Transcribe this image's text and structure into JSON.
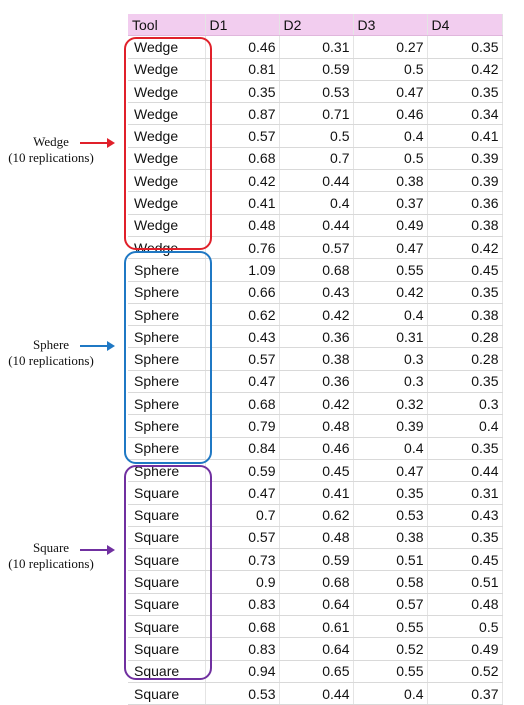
{
  "table": {
    "headers": [
      "Tool",
      "D1",
      "D2",
      "D3",
      "D4"
    ],
    "rows": [
      [
        "Wedge",
        "0.46",
        "0.31",
        "0.27",
        "0.35"
      ],
      [
        "Wedge",
        "0.81",
        "0.59",
        "0.5",
        "0.42"
      ],
      [
        "Wedge",
        "0.35",
        "0.53",
        "0.47",
        "0.35"
      ],
      [
        "Wedge",
        "0.87",
        "0.71",
        "0.46",
        "0.34"
      ],
      [
        "Wedge",
        "0.57",
        "0.5",
        "0.4",
        "0.41"
      ],
      [
        "Wedge",
        "0.68",
        "0.7",
        "0.5",
        "0.39"
      ],
      [
        "Wedge",
        "0.42",
        "0.44",
        "0.38",
        "0.39"
      ],
      [
        "Wedge",
        "0.41",
        "0.4",
        "0.37",
        "0.36"
      ],
      [
        "Wedge",
        "0.48",
        "0.44",
        "0.49",
        "0.38"
      ],
      [
        "Wedge",
        "0.76",
        "0.57",
        "0.47",
        "0.42"
      ],
      [
        "Sphere",
        "1.09",
        "0.68",
        "0.55",
        "0.45"
      ],
      [
        "Sphere",
        "0.66",
        "0.43",
        "0.42",
        "0.35"
      ],
      [
        "Sphere",
        "0.62",
        "0.42",
        "0.4",
        "0.38"
      ],
      [
        "Sphere",
        "0.43",
        "0.36",
        "0.31",
        "0.28"
      ],
      [
        "Sphere",
        "0.57",
        "0.38",
        "0.3",
        "0.28"
      ],
      [
        "Sphere",
        "0.47",
        "0.36",
        "0.3",
        "0.35"
      ],
      [
        "Sphere",
        "0.68",
        "0.42",
        "0.32",
        "0.3"
      ],
      [
        "Sphere",
        "0.79",
        "0.48",
        "0.39",
        "0.4"
      ],
      [
        "Sphere",
        "0.84",
        "0.46",
        "0.4",
        "0.35"
      ],
      [
        "Sphere",
        "0.59",
        "0.45",
        "0.47",
        "0.44"
      ],
      [
        "Square",
        "0.47",
        "0.41",
        "0.35",
        "0.31"
      ],
      [
        "Square",
        "0.7",
        "0.62",
        "0.53",
        "0.43"
      ],
      [
        "Square",
        "0.57",
        "0.48",
        "0.38",
        "0.35"
      ],
      [
        "Square",
        "0.73",
        "0.59",
        "0.51",
        "0.45"
      ],
      [
        "Square",
        "0.9",
        "0.68",
        "0.58",
        "0.51"
      ],
      [
        "Square",
        "0.83",
        "0.64",
        "0.57",
        "0.48"
      ],
      [
        "Square",
        "0.68",
        "0.61",
        "0.55",
        "0.5"
      ],
      [
        "Square",
        "0.83",
        "0.64",
        "0.52",
        "0.49"
      ],
      [
        "Square",
        "0.94",
        "0.65",
        "0.55",
        "0.52"
      ],
      [
        "Square",
        "0.53",
        "0.44",
        "0.4",
        "0.37"
      ]
    ]
  },
  "annotations": {
    "wedge": {
      "name": "Wedge",
      "note": "(10 replications)",
      "color": "#e0202a"
    },
    "sphere": {
      "name": "Sphere",
      "note": "(10 replications)",
      "color": "#1f78c4"
    },
    "square": {
      "name": "Square",
      "note": "(10 replications)",
      "color": "#7030a0"
    }
  },
  "header_color": "#f2cdef"
}
